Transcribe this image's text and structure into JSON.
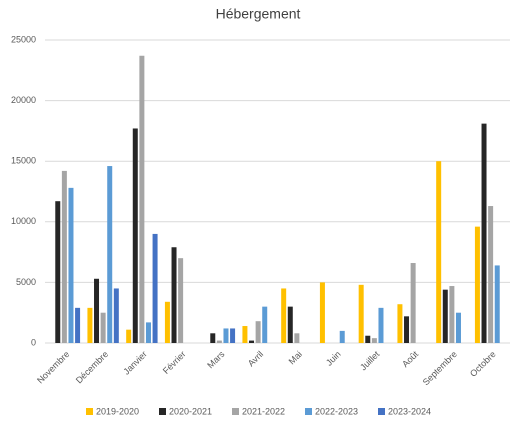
{
  "chart_data": {
    "type": "bar",
    "title": "Hébergement",
    "categories": [
      "Novembre",
      "Décembre",
      "Janvier",
      "Février",
      "Mars",
      "Avril",
      "Mai",
      "Juin",
      "Juillet",
      "Août",
      "Septembre",
      "Octobre"
    ],
    "series": [
      {
        "name": "2019-2020",
        "color": "#ffc000",
        "values": [
          0,
          2900,
          1100,
          3400,
          0,
          1400,
          4500,
          5000,
          4800,
          3200,
          15000,
          9600
        ]
      },
      {
        "name": "2020-2021",
        "color": "#262626",
        "values": [
          11700,
          5300,
          17700,
          7900,
          800,
          200,
          3000,
          0,
          600,
          2200,
          4400,
          18100
        ]
      },
      {
        "name": "2021-2022",
        "color": "#a5a5a5",
        "values": [
          14200,
          2500,
          23700,
          7000,
          200,
          1800,
          800,
          0,
          400,
          6600,
          4700,
          11300
        ]
      },
      {
        "name": "2022-2023",
        "color": "#5b9bd5",
        "values": [
          12800,
          14600,
          1700,
          0,
          1200,
          3000,
          0,
          1000,
          2900,
          0,
          2500,
          6400
        ]
      },
      {
        "name": "2023-2024",
        "color": "#4472c4",
        "values": [
          2900,
          4500,
          9000,
          0,
          1200,
          0,
          0,
          0,
          0,
          0,
          0,
          0
        ]
      }
    ],
    "ylim": [
      0,
      25000
    ],
    "yticks": [
      0,
      5000,
      10000,
      15000,
      20000,
      25000
    ],
    "grid": true,
    "legend": "bottom"
  }
}
